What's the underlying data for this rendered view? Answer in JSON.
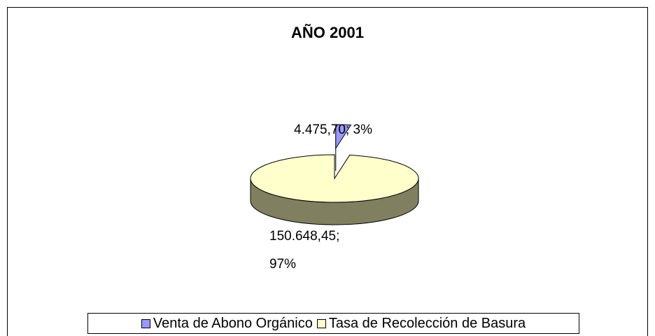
{
  "chart_data": {
    "type": "pie",
    "title": "AÑO 2001",
    "categories": [
      "Venta de Abono Orgánico",
      "Tasa de Recolección de Basura"
    ],
    "values": [
      4475.7,
      150648.45
    ],
    "value_labels": [
      "4.475,70; 3%",
      "150.648,45; 97%"
    ],
    "colors": [
      "#9999ff",
      "#ffffcc"
    ],
    "side_colors": [
      "#4c4c80",
      "#808060"
    ],
    "legend": "bottom"
  }
}
